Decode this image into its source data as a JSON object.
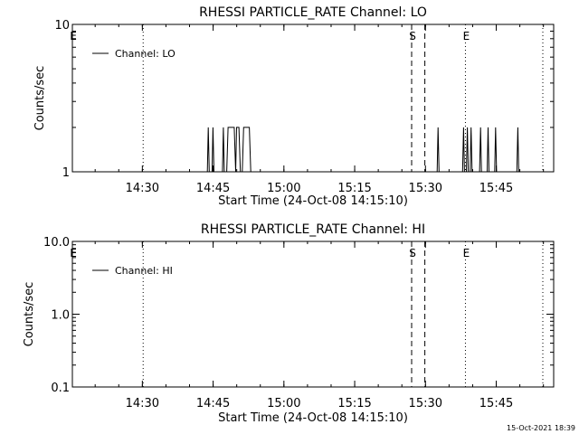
{
  "footer_timestamp": "15-Oct-2021 18:39",
  "chart_data": [
    {
      "type": "line",
      "title": "RHESSI PARTICLE_RATE Channel: LO",
      "xlabel": "Start Time (24-Oct-08 14:15:10)",
      "ylabel": "Counts/sec",
      "y_scale": "log",
      "ylim": [
        1,
        10
      ],
      "ytick_labels": [
        "1",
        "10"
      ],
      "x_unit": "minutes since 14:15:10",
      "xlim": [
        0,
        102
      ],
      "xtick_labels": [
        "14:30",
        "14:45",
        "15:00",
        "15:15",
        "15:30",
        "15:45"
      ],
      "xtick_values": [
        14.83,
        29.83,
        44.83,
        59.83,
        74.83,
        89.83
      ],
      "legend": {
        "position": "top-left",
        "entries": [
          {
            "name": "Channel: LO"
          }
        ]
      },
      "markers": [
        {
          "x": 0.0,
          "label": "E",
          "style": "dotted"
        },
        {
          "x": 15.0,
          "label": "",
          "style": "dotted"
        },
        {
          "x": 71.9,
          "label": "S",
          "style": "dashed"
        },
        {
          "x": 74.7,
          "label": "",
          "style": "dashed"
        },
        {
          "x": 83.3,
          "label": "E",
          "style": "dotted"
        },
        {
          "x": 99.7,
          "label": "",
          "style": "dotted"
        }
      ],
      "series": [
        {
          "name": "Channel: LO",
          "baseline": 1,
          "points": [
            [
              0,
              1
            ],
            [
              28.6,
              1
            ],
            [
              28.8,
              2
            ],
            [
              29.0,
              1
            ],
            [
              29.6,
              1
            ],
            [
              29.8,
              2
            ],
            [
              30.0,
              1
            ],
            [
              31.8,
              1
            ],
            [
              32.0,
              2
            ],
            [
              32.2,
              1
            ],
            [
              32.7,
              1
            ],
            [
              33.0,
              2
            ],
            [
              34.3,
              2
            ],
            [
              34.6,
              1
            ],
            [
              34.8,
              2
            ],
            [
              35.3,
              2
            ],
            [
              35.6,
              1
            ],
            [
              36.0,
              1
            ],
            [
              36.3,
              2
            ],
            [
              37.5,
              2
            ],
            [
              37.8,
              1
            ],
            [
              72.4,
              1
            ],
            [
              72.7,
              1
            ],
            [
              77.3,
              1
            ],
            [
              77.5,
              2
            ],
            [
              77.7,
              1
            ],
            [
              82.7,
              1
            ],
            [
              82.9,
              2
            ],
            [
              83.1,
              1
            ],
            [
              83.5,
              1
            ],
            [
              83.7,
              2
            ],
            [
              83.9,
              1
            ],
            [
              84.3,
              1
            ],
            [
              84.5,
              2
            ],
            [
              84.7,
              1
            ],
            [
              86.3,
              1
            ],
            [
              86.5,
              2
            ],
            [
              86.7,
              1
            ],
            [
              87.9,
              1
            ],
            [
              88.1,
              2
            ],
            [
              88.3,
              1
            ],
            [
              89.5,
              1
            ],
            [
              89.7,
              2
            ],
            [
              89.9,
              1
            ],
            [
              94.2,
              1
            ],
            [
              94.4,
              2
            ],
            [
              94.6,
              1
            ],
            [
              102,
              1
            ]
          ]
        }
      ]
    },
    {
      "type": "line",
      "title": "RHESSI PARTICLE_RATE Channel: HI",
      "xlabel": "Start Time (24-Oct-08 14:15:10)",
      "ylabel": "Counts/sec",
      "y_scale": "log",
      "ylim": [
        0.1,
        10
      ],
      "ytick_labels": [
        "0.1",
        "1.0",
        "10.0"
      ],
      "x_unit": "minutes since 14:15:10",
      "xlim": [
        0,
        102
      ],
      "xtick_labels": [
        "14:30",
        "14:45",
        "15:00",
        "15:15",
        "15:30",
        "15:45"
      ],
      "xtick_values": [
        14.83,
        29.83,
        44.83,
        59.83,
        74.83,
        89.83
      ],
      "legend": {
        "position": "top-left",
        "entries": [
          {
            "name": "Channel: HI"
          }
        ]
      },
      "markers": [
        {
          "x": 0.0,
          "label": "E",
          "style": "dotted"
        },
        {
          "x": 15.0,
          "label": "",
          "style": "dotted"
        },
        {
          "x": 71.9,
          "label": "S",
          "style": "dashed"
        },
        {
          "x": 74.7,
          "label": "",
          "style": "dashed"
        },
        {
          "x": 83.3,
          "label": "E",
          "style": "dotted"
        },
        {
          "x": 99.7,
          "label": "",
          "style": "dotted"
        }
      ],
      "series": [
        {
          "name": "Channel: HI",
          "points": []
        }
      ]
    }
  ]
}
